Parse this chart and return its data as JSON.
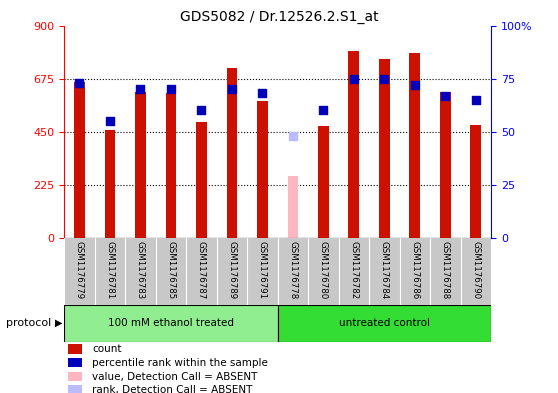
{
  "title": "GDS5082 / Dr.12526.2.S1_at",
  "samples": [
    "GSM1176779",
    "GSM1176781",
    "GSM1176783",
    "GSM1176785",
    "GSM1176787",
    "GSM1176789",
    "GSM1176791",
    "GSM1176778",
    "GSM1176780",
    "GSM1176782",
    "GSM1176784",
    "GSM1176786",
    "GSM1176788",
    "GSM1176790"
  ],
  "counts": [
    660,
    455,
    620,
    615,
    490,
    720,
    580,
    260,
    475,
    790,
    760,
    785,
    620,
    480
  ],
  "ranks": [
    73,
    55,
    70,
    70,
    60,
    70,
    68,
    null,
    60,
    75,
    75,
    72,
    67,
    65
  ],
  "absent_value": [
    null,
    null,
    null,
    null,
    null,
    null,
    null,
    260,
    null,
    null,
    null,
    null,
    null,
    null
  ],
  "absent_rank": [
    null,
    null,
    null,
    null,
    null,
    null,
    null,
    48,
    null,
    null,
    null,
    null,
    null,
    null
  ],
  "group_labels": [
    "100 mM ethanol treated",
    "untreated control"
  ],
  "group_split": 7,
  "group_color_1": "#90EE90",
  "group_color_2": "#33DD33",
  "ylim_left": [
    0,
    900
  ],
  "ylim_right": [
    0,
    100
  ],
  "yticks_left": [
    0,
    225,
    450,
    675,
    900
  ],
  "yticks_right": [
    0,
    25,
    50,
    75,
    100
  ],
  "yticklabels_right": [
    "0",
    "25",
    "50",
    "75",
    "100%"
  ],
  "bar_color_red": "#CC1100",
  "bar_color_pink": "#FFB6C1",
  "dot_color_blue": "#0000BB",
  "dot_color_lightblue": "#BBBBFF",
  "protocol_label": "protocol",
  "legend_items": [
    {
      "color": "#CC1100",
      "label": "count"
    },
    {
      "color": "#0000BB",
      "label": "percentile rank within the sample"
    },
    {
      "color": "#FFB6C1",
      "label": "value, Detection Call = ABSENT"
    },
    {
      "color": "#BBBBFF",
      "label": "rank, Detection Call = ABSENT"
    }
  ]
}
